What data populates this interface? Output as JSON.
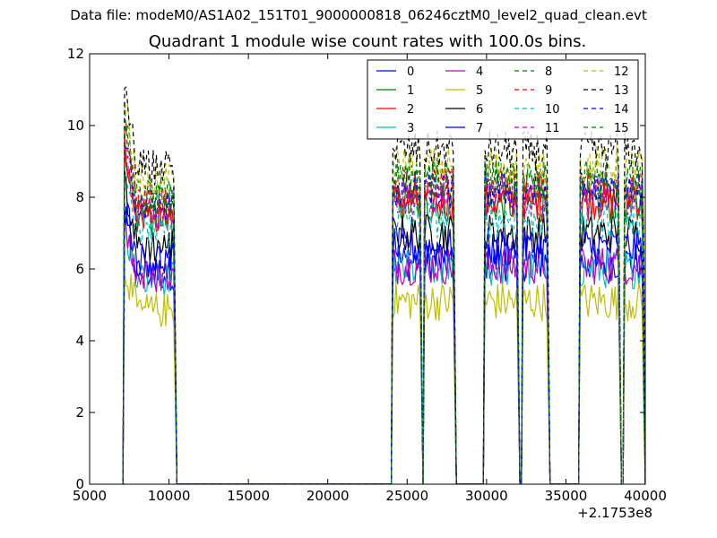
{
  "chart_data": {
    "type": "line",
    "suptitle": "Data file: modeM0/AS1A02_151T01_9000000818_06246cztM0_level2_quad_clean.evt",
    "title": "Quadrant 1 module wise count rates with 100.0s bins.",
    "xlabel": "",
    "ylabel": "",
    "x_offset_label": "+2.1753e8",
    "xlim": [
      5000,
      40000
    ],
    "ylim": [
      0,
      12
    ],
    "xticks": [
      5000,
      10000,
      15000,
      20000,
      25000,
      30000,
      35000,
      40000
    ],
    "xtick_labels": [
      "5000",
      "10000",
      "15000",
      "20000",
      "25000",
      "30000",
      "35000",
      "40000"
    ],
    "yticks": [
      0,
      2,
      4,
      6,
      8,
      10,
      12
    ],
    "ytick_labels": [
      "0",
      "2",
      "4",
      "6",
      "8",
      "10",
      "12"
    ],
    "legend_position": "top-right",
    "segments": [
      {
        "start": 7200,
        "end": 10300,
        "stop": 10500
      },
      {
        "start": 24100,
        "end": 25800,
        "stop": 26000
      },
      {
        "start": 26100,
        "end": 27900,
        "stop": 28100
      },
      {
        "start": 29900,
        "end": 31900,
        "stop": 32100
      },
      {
        "start": 32300,
        "end": 33800,
        "stop": 34000
      },
      {
        "start": 35900,
        "end": 38300,
        "stop": 38500
      },
      {
        "start": 38700,
        "end": 39900,
        "stop": 40000
      }
    ],
    "gap_value": 0,
    "series": [
      {
        "name": "0",
        "color": "#0000ff",
        "dash": "solid",
        "level": 6.2
      },
      {
        "name": "1",
        "color": "#008000",
        "dash": "solid",
        "level": 7.8
      },
      {
        "name": "2",
        "color": "#ff0000",
        "dash": "solid",
        "level": 7.9
      },
      {
        "name": "3",
        "color": "#00bfbf",
        "dash": "solid",
        "level": 6.0
      },
      {
        "name": "4",
        "color": "#bf00bf",
        "dash": "solid",
        "level": 6.1
      },
      {
        "name": "5",
        "color": "#bfbf00",
        "dash": "solid",
        "level": 5.1
      },
      {
        "name": "6",
        "color": "#000000",
        "dash": "solid",
        "level": 7.0
      },
      {
        "name": "7",
        "color": "#0000ff",
        "dash": "solid",
        "level": 6.6
      },
      {
        "name": "8",
        "color": "#008000",
        "dash": "dashed",
        "level": 8.6
      },
      {
        "name": "9",
        "color": "#ff0000",
        "dash": "dashed",
        "level": 8.3
      },
      {
        "name": "10",
        "color": "#00bfbf",
        "dash": "dashed",
        "level": 7.4
      },
      {
        "name": "11",
        "color": "#bf00bf",
        "dash": "dashed",
        "level": 8.0
      },
      {
        "name": "12",
        "color": "#bfbf00",
        "dash": "dashed",
        "level": 8.9
      },
      {
        "name": "13",
        "color": "#000000",
        "dash": "dashed",
        "level": 9.3
      },
      {
        "name": "14",
        "color": "#0000ff",
        "dash": "dashed",
        "level": 8.2
      },
      {
        "name": "15",
        "color": "#008000",
        "dash": "dashed",
        "level": 8.4
      }
    ]
  }
}
